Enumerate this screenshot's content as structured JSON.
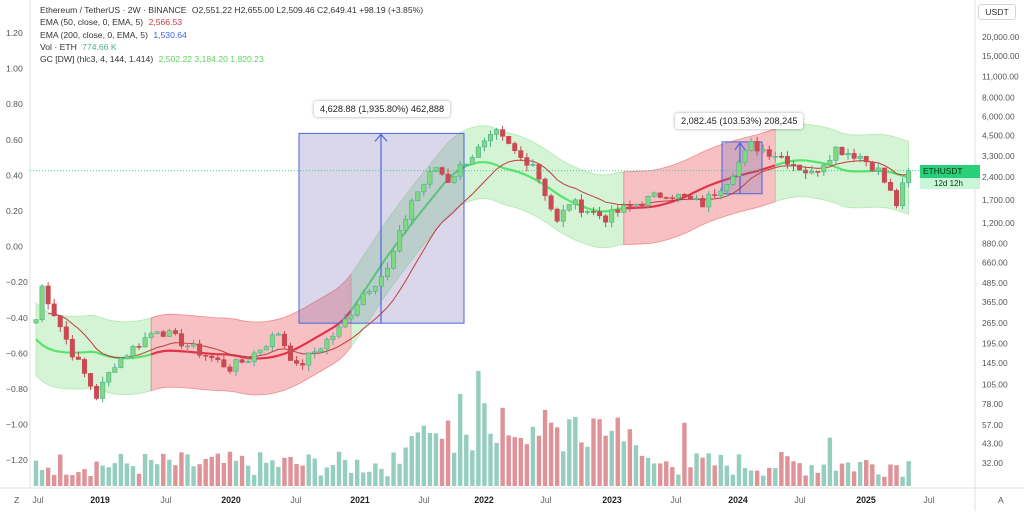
{
  "legend": {
    "title": "Ethereum / TetherUS · 2W · BINANCE",
    "ohlc": "O2,551.22 H2,655.00 L2,509.46 C2,649.41 +98.19 (+3.85%)",
    "ema50_label": "EMA (50, close, 0, EMA, 5)",
    "ema50_value": "2,566.53",
    "ema200_label": "EMA (200, close, 0, EMA, 5)",
    "ema200_value": "1,530.64",
    "vol_label": "Vol · ETH",
    "vol_value": "774.66 K",
    "gc_label": "GC [DW] (hlc3, 4, 144, 1.414)",
    "gc_values": "2,502.22  3,184.20  1,820.23"
  },
  "currency": "USDT",
  "price_label": {
    "symbol": "ETHUSDT",
    "price": "2,649.41",
    "countdown": "12d 12h"
  },
  "annotations": [
    {
      "text": "4,628.88 (1,935.80%) 462,888"
    },
    {
      "text": "2,082.45 (103.53%) 208,245"
    }
  ],
  "corner": {
    "left": "Z",
    "right": "A"
  },
  "colors": {
    "up": "#4fae93",
    "down": "#c94a53",
    "green_band": "#9be39b",
    "red_band": "#ec6a6e",
    "ema50": "#c23b3b",
    "ema200": "#3a64e6"
  },
  "chart_data": {
    "type": "candlestick",
    "left_axis_ticks": [
      "1.20",
      "1.00",
      "0.80",
      "0.60",
      "0.40",
      "0.20",
      "0.00",
      "−0.20",
      "−0.40",
      "−0.60",
      "−0.80",
      "−1.00",
      "−1.20"
    ],
    "right_axis_ticks": [
      "20,000.00",
      "15,000.00",
      "11,000.00",
      "8,000.00",
      "6,000.00",
      "4,500.00",
      "3,300.00",
      "2,400.00",
      "1,700.00",
      "1,200.00",
      "880.00",
      "660.00",
      "485.00",
      "365.00",
      "265.00",
      "195.00",
      "145.00",
      "105.00",
      "78.00",
      "57.00",
      "43.00",
      "32.00"
    ],
    "x_ticks": [
      "Jul",
      "2019",
      "Jul",
      "2020",
      "Jul",
      "2021",
      "Jul",
      "2022",
      "Jul",
      "2023",
      "Jul",
      "2024",
      "Jul",
      "2025",
      "Jul"
    ],
    "ylim": [
      22,
      25000
    ],
    "scale": "log",
    "last_price": 2649.41,
    "anchors": [
      {
        "t": 0,
        "p": 280
      },
      {
        "t": 1,
        "p": 460
      },
      {
        "t": 6,
        "p": 170
      },
      {
        "t": 10,
        "p": 88
      },
      {
        "t": 13,
        "p": 145
      },
      {
        "t": 20,
        "p": 245
      },
      {
        "t": 26,
        "p": 180
      },
      {
        "t": 32,
        "p": 135
      },
      {
        "t": 35,
        "p": 155
      },
      {
        "t": 40,
        "p": 230
      },
      {
        "t": 43,
        "p": 135
      },
      {
        "t": 50,
        "p": 240
      },
      {
        "t": 54,
        "p": 420
      },
      {
        "t": 58,
        "p": 590
      },
      {
        "t": 62,
        "p": 1700
      },
      {
        "t": 66,
        "p": 2800
      },
      {
        "t": 68,
        "p": 2300
      },
      {
        "t": 71,
        "p": 3100
      },
      {
        "t": 76,
        "p": 4600
      },
      {
        "t": 80,
        "p": 3200
      },
      {
        "t": 82,
        "p": 3000
      },
      {
        "t": 86,
        "p": 1200
      },
      {
        "t": 88,
        "p": 1650
      },
      {
        "t": 94,
        "p": 1300
      },
      {
        "t": 98,
        "p": 1550
      },
      {
        "t": 104,
        "p": 1900
      },
      {
        "t": 110,
        "p": 1600
      },
      {
        "t": 114,
        "p": 2300
      },
      {
        "t": 118,
        "p": 3900
      },
      {
        "t": 123,
        "p": 3300
      },
      {
        "t": 128,
        "p": 2500
      },
      {
        "t": 132,
        "p": 3700
      },
      {
        "t": 136,
        "p": 3300
      },
      {
        "t": 139,
        "p": 2650
      },
      {
        "t": 142,
        "p": 1600
      },
      {
        "t": 144,
        "p": 2649
      }
    ],
    "volume_peak_candles": [
      {
        "t": 70,
        "v": 0.8
      },
      {
        "t": 73,
        "v": 1.0
      },
      {
        "t": 74,
        "v": 0.72
      },
      {
        "t": 77,
        "v": 0.68
      },
      {
        "t": 88,
        "v": 0.58
      },
      {
        "t": 95,
        "v": 0.48
      },
      {
        "t": 107,
        "v": 0.55
      },
      {
        "t": 131,
        "v": 0.42
      }
    ],
    "measure_boxes": [
      {
        "from_price": 265,
        "to_price": 4650,
        "label_index": 0
      },
      {
        "from_price": 1870,
        "to_price": 4090,
        "label_index": 1
      }
    ]
  }
}
